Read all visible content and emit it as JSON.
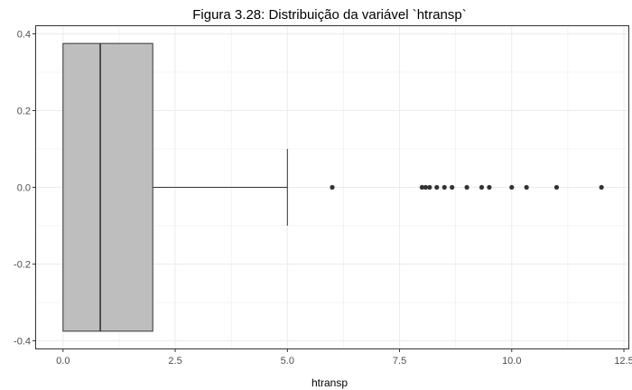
{
  "chart_data": {
    "type": "boxplot",
    "title": "Figura 3.28: Distribuição da variável `htransp`",
    "xlabel": "htransp",
    "ylabel": "",
    "xlim": [
      -0.6,
      12.6
    ],
    "ylim": [
      -0.42,
      0.42
    ],
    "x_ticks": [
      0.0,
      2.5,
      5.0,
      7.5,
      10.0,
      12.5
    ],
    "x_tick_labels": [
      "0.0",
      "2.5",
      "5.0",
      "7.5",
      "10.0",
      "12.5"
    ],
    "y_ticks": [
      -0.4,
      -0.2,
      0.0,
      0.2,
      0.4
    ],
    "y_tick_labels": [
      "-0.4",
      "-0.2",
      "0.0",
      "0.2",
      "0.4"
    ],
    "grid": true,
    "box": {
      "min": 0.0,
      "q1": 0.0,
      "median": 0.83,
      "q3": 2.0,
      "whisker_high": 5.0,
      "box_y_low": -0.375,
      "box_y_high": 0.375,
      "whisker_cap_y": [
        -0.1,
        0.1
      ],
      "fill": "#bebebe",
      "stroke": "#333333"
    },
    "outliers": [
      6.0,
      8.0,
      8.08,
      8.17,
      8.33,
      8.5,
      8.67,
      9.0,
      9.33,
      9.5,
      10.0,
      10.33,
      11.0,
      12.0
    ],
    "outlier_color": "#333333",
    "panel_border": "#333333",
    "grid_color": "#ebebeb"
  }
}
